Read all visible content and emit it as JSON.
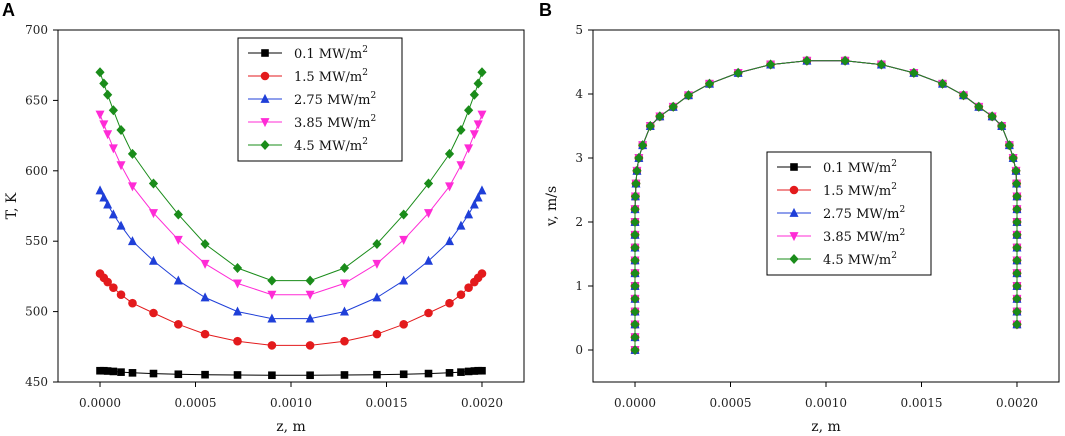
{
  "chart_data": [
    {
      "panel_label": "A",
      "type": "line",
      "title": "",
      "xlabel": "z, m",
      "ylabel": "T, K",
      "xlim": [
        -0.00022,
        0.00222
      ],
      "ylim": [
        450,
        700
      ],
      "x_ticks": [
        0.0,
        0.0005,
        0.001,
        0.0015,
        0.002
      ],
      "x_tick_labels": [
        "0.0000",
        "0.0005",
        "0.0010",
        "0.0015",
        "0.0020"
      ],
      "y_ticks": [
        450,
        500,
        550,
        600,
        650,
        700
      ],
      "y_tick_labels": [
        "450",
        "500",
        "550",
        "600",
        "650",
        "700"
      ],
      "grid": false,
      "legend_position": "top-center",
      "x": [
        0.0,
        2e-05,
        4e-05,
        7e-05,
        0.00011,
        0.00017,
        0.00028,
        0.00041,
        0.00055,
        0.00072,
        0.0009,
        0.0011,
        0.00128,
        0.00145,
        0.00159,
        0.00172,
        0.00183,
        0.00189,
        0.00193,
        0.00196,
        0.00198,
        0.002
      ],
      "series": [
        {
          "name": "0.1",
          "unit": "MW/m",
          "unit_exp": "2",
          "color": "#000000",
          "marker": "square",
          "values": [
            458,
            458,
            457.8,
            457.5,
            457,
            456.5,
            456,
            455.5,
            455.2,
            455,
            454.8,
            454.8,
            455,
            455.2,
            455.5,
            456,
            456.5,
            457,
            457.5,
            457.8,
            458,
            458
          ]
        },
        {
          "name": "1.5",
          "unit": "MW/m",
          "unit_exp": "2",
          "color": "#e31a1c",
          "marker": "circle",
          "values": [
            527,
            524,
            521,
            517,
            512,
            506,
            499,
            491,
            484,
            479,
            476,
            476,
            479,
            484,
            491,
            499,
            506,
            512,
            517,
            521,
            524,
            527
          ]
        },
        {
          "name": "2.75",
          "unit": "MW/m",
          "unit_exp": "2",
          "color": "#1f3fd8",
          "marker": "triangle-up",
          "values": [
            586,
            581,
            576,
            569,
            561,
            550,
            536,
            522,
            510,
            500,
            495,
            495,
            500,
            510,
            522,
            536,
            550,
            561,
            569,
            576,
            581,
            586
          ]
        },
        {
          "name": "3.85",
          "unit": "MW/m",
          "unit_exp": "2",
          "color": "#ff2bd6",
          "marker": "triangle-down",
          "values": [
            640,
            633,
            626,
            616,
            604,
            589,
            570,
            551,
            534,
            520,
            512,
            512,
            520,
            534,
            551,
            570,
            589,
            604,
            616,
            626,
            633,
            640
          ]
        },
        {
          "name": "4.5",
          "unit": "MW/m",
          "unit_exp": "2",
          "color": "#1a8c1a",
          "marker": "diamond",
          "values": [
            670,
            662,
            654,
            643,
            629,
            612,
            591,
            569,
            548,
            531,
            522,
            522,
            531,
            548,
            569,
            591,
            612,
            629,
            643,
            654,
            662,
            670
          ]
        }
      ]
    },
    {
      "panel_label": "B",
      "type": "line",
      "title": "",
      "xlabel": "z, m",
      "ylabel": "v, m/s",
      "xlim": [
        -0.00022,
        0.00222
      ],
      "ylim": [
        -0.5,
        5
      ],
      "x_ticks": [
        0.0,
        0.0005,
        0.001,
        0.0015,
        0.002
      ],
      "x_tick_labels": [
        "0.0000",
        "0.0005",
        "0.0010",
        "0.0015",
        "0.0020"
      ],
      "y_ticks": [
        0,
        1,
        2,
        3,
        4,
        5
      ],
      "y_tick_labels": [
        "0",
        "1",
        "2",
        "3",
        "4",
        "5"
      ],
      "grid": false,
      "legend_position": "center",
      "x": [
        0.0,
        0.0,
        0.0,
        0.0,
        0.0,
        0.0,
        0.0,
        0.0,
        0.0,
        0.0,
        0.0,
        0.0,
        2e-06,
        5e-06,
        1e-05,
        2e-05,
        4e-05,
        8e-05,
        0.00013,
        0.0002,
        0.00028,
        0.00039,
        0.00054,
        0.00071,
        0.0009,
        0.0011,
        0.00129,
        0.00146,
        0.00161,
        0.00172,
        0.0018,
        0.00187,
        0.00192,
        0.00196,
        0.00198,
        0.001995,
        0.001998,
        0.002,
        0.002,
        0.002,
        0.002,
        0.002,
        0.002,
        0.002,
        0.002,
        0.002,
        0.002,
        0.002
      ],
      "series": [
        {
          "name": "0.1",
          "unit": "MW/m",
          "unit_exp": "2",
          "color": "#000000",
          "marker": "square",
          "values": [
            0,
            0.2,
            0.4,
            0.6,
            0.8,
            1.0,
            1.2,
            1.4,
            1.6,
            1.8,
            2.0,
            2.2,
            2.4,
            2.6,
            2.8,
            3.0,
            3.2,
            3.5,
            3.65,
            3.8,
            3.98,
            4.16,
            4.33,
            4.46,
            4.52,
            4.52,
            4.46,
            4.33,
            4.16,
            3.98,
            3.8,
            3.65,
            3.5,
            3.2,
            3.0,
            2.8,
            2.6,
            2.4,
            2.2,
            2.0,
            1.8,
            1.6,
            1.4,
            1.2,
            1.0,
            0.8,
            0.6,
            0.4
          ]
        },
        {
          "name": "1.5",
          "unit": "MW/m",
          "unit_exp": "2",
          "color": "#e31a1c",
          "marker": "circle",
          "values": [
            0,
            0.2,
            0.4,
            0.6,
            0.8,
            1.0,
            1.2,
            1.4,
            1.6,
            1.8,
            2.0,
            2.2,
            2.4,
            2.6,
            2.8,
            3.0,
            3.2,
            3.5,
            3.65,
            3.8,
            3.98,
            4.16,
            4.33,
            4.46,
            4.52,
            4.52,
            4.46,
            4.33,
            4.16,
            3.98,
            3.8,
            3.65,
            3.5,
            3.2,
            3.0,
            2.8,
            2.6,
            2.4,
            2.2,
            2.0,
            1.8,
            1.6,
            1.4,
            1.2,
            1.0,
            0.8,
            0.6,
            0.4
          ]
        },
        {
          "name": "2.75",
          "unit": "MW/m",
          "unit_exp": "2",
          "color": "#1f3fd8",
          "marker": "triangle-up",
          "values": [
            0,
            0.2,
            0.4,
            0.6,
            0.8,
            1.0,
            1.2,
            1.4,
            1.6,
            1.8,
            2.0,
            2.2,
            2.4,
            2.6,
            2.8,
            3.0,
            3.2,
            3.5,
            3.65,
            3.8,
            3.98,
            4.16,
            4.33,
            4.46,
            4.52,
            4.52,
            4.46,
            4.33,
            4.16,
            3.98,
            3.8,
            3.65,
            3.5,
            3.2,
            3.0,
            2.8,
            2.6,
            2.4,
            2.2,
            2.0,
            1.8,
            1.6,
            1.4,
            1.2,
            1.0,
            0.8,
            0.6,
            0.4
          ]
        },
        {
          "name": "3.85",
          "unit": "MW/m",
          "unit_exp": "2",
          "color": "#ff2bd6",
          "marker": "triangle-down",
          "values": [
            0,
            0.2,
            0.4,
            0.6,
            0.8,
            1.0,
            1.2,
            1.4,
            1.6,
            1.8,
            2.0,
            2.2,
            2.4,
            2.6,
            2.8,
            3.0,
            3.2,
            3.5,
            3.65,
            3.8,
            3.98,
            4.16,
            4.33,
            4.46,
            4.52,
            4.52,
            4.46,
            4.33,
            4.16,
            3.98,
            3.8,
            3.65,
            3.5,
            3.2,
            3.0,
            2.8,
            2.6,
            2.4,
            2.2,
            2.0,
            1.8,
            1.6,
            1.4,
            1.2,
            1.0,
            0.8,
            0.6,
            0.4
          ]
        },
        {
          "name": "4.5",
          "unit": "MW/m",
          "unit_exp": "2",
          "color": "#1a8c1a",
          "marker": "diamond",
          "values": [
            0,
            0.2,
            0.4,
            0.6,
            0.8,
            1.0,
            1.2,
            1.4,
            1.6,
            1.8,
            2.0,
            2.2,
            2.4,
            2.6,
            2.8,
            3.0,
            3.2,
            3.5,
            3.65,
            3.8,
            3.98,
            4.16,
            4.33,
            4.46,
            4.52,
            4.52,
            4.46,
            4.33,
            4.16,
            3.98,
            3.8,
            3.65,
            3.5,
            3.2,
            3.0,
            2.8,
            2.6,
            2.4,
            2.2,
            2.0,
            1.8,
            1.6,
            1.4,
            1.2,
            1.0,
            0.8,
            0.6,
            0.4
          ]
        }
      ]
    }
  ]
}
